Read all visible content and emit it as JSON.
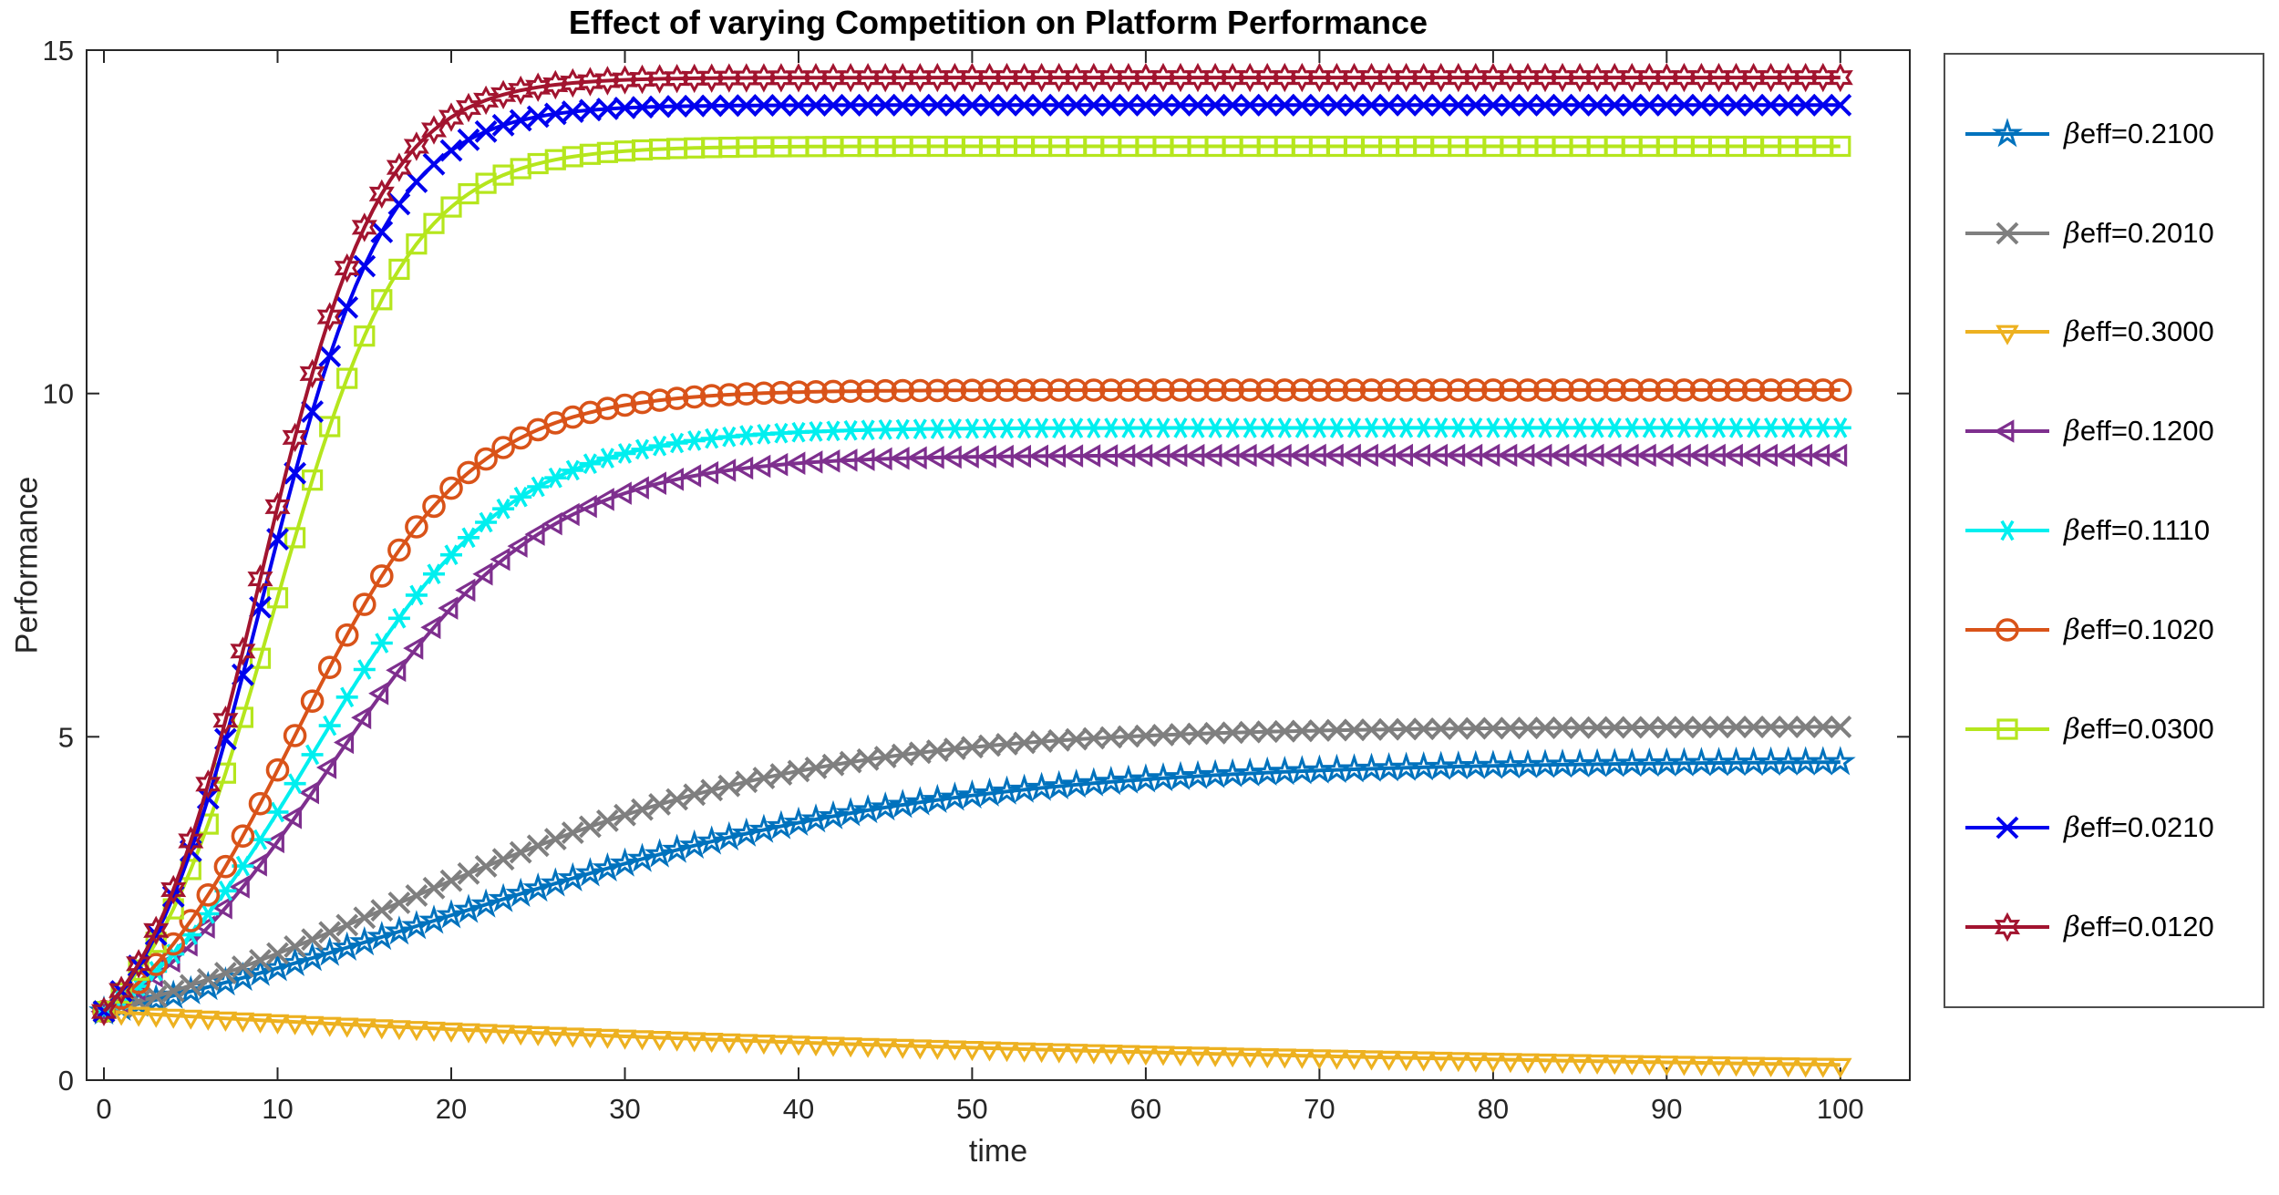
{
  "chart_data": {
    "type": "line",
    "title": "Effect of varying Competition on Platform Performance",
    "xlabel": "time",
    "ylabel": "Performance",
    "xlim": [
      -1,
      104
    ],
    "ylim": [
      0,
      15
    ],
    "xticks": [
      0,
      10,
      20,
      30,
      40,
      50,
      60,
      70,
      80,
      90,
      100
    ],
    "yticks": [
      0,
      5,
      10,
      15
    ],
    "grid": false,
    "legend_position": "outside-right",
    "axis_color": "#262626",
    "x_samples": [
      0,
      5,
      10,
      15,
      20,
      25,
      30,
      35,
      40,
      45,
      50,
      55,
      60,
      65,
      70,
      75,
      80,
      85,
      90,
      95,
      100
    ],
    "series": [
      {
        "label": "βeff=0.2100",
        "color": "#0072BD",
        "marker": "pentagram",
        "model": {
          "type": "logistic",
          "K": 4.65,
          "r": 0.068,
          "p0": 1
        },
        "values": [
          1.0,
          1.29,
          1.63,
          2.01,
          2.4,
          2.79,
          3.15,
          3.48,
          3.75,
          3.97,
          4.14,
          4.28,
          4.38,
          4.46,
          4.51,
          4.55,
          4.58,
          4.6,
          4.61,
          4.63,
          4.64
        ]
      },
      {
        "label": "βeff=0.2010",
        "color": "#7F7F7F",
        "marker": "x",
        "model": {
          "type": "logistic",
          "K": 5.15,
          "r": 0.084,
          "p0": 1
        },
        "values": [
          1.0,
          1.38,
          1.84,
          2.37,
          2.9,
          3.42,
          3.86,
          4.22,
          4.5,
          4.7,
          4.85,
          4.95,
          5.01,
          5.06,
          5.09,
          5.11,
          5.12,
          5.13,
          5.14,
          5.14,
          5.15
        ]
      },
      {
        "label": "βeff=0.3000",
        "color": "#EDB120",
        "marker": "triangle-down",
        "model": {
          "type": "exp_decay",
          "rate": 0.015,
          "p0": 1
        },
        "values": [
          1.0,
          0.93,
          0.86,
          0.8,
          0.74,
          0.69,
          0.64,
          0.59,
          0.55,
          0.51,
          0.47,
          0.44,
          0.41,
          0.38,
          0.35,
          0.33,
          0.3,
          0.28,
          0.26,
          0.24,
          0.22
        ]
      },
      {
        "label": "βeff=0.1200",
        "color": "#7E2F8E",
        "marker": "triangle-left",
        "model": {
          "type": "logistic",
          "K": 9.1,
          "r": 0.161,
          "p0": 1
        },
        "values": [
          1.0,
          1.97,
          3.47,
          5.28,
          6.87,
          7.95,
          8.55,
          8.84,
          8.98,
          9.05,
          9.08,
          9.09,
          9.1,
          9.1,
          9.1,
          9.1,
          9.1,
          9.1,
          9.1,
          9.1,
          9.1
        ]
      },
      {
        "label": "βeff=0.1110",
        "color": "#00EFEF",
        "marker": "asterisk",
        "model": {
          "type": "logistic",
          "K": 9.5,
          "r": 0.178,
          "p0": 1
        },
        "values": [
          1.0,
          2.12,
          3.9,
          5.98,
          7.65,
          8.64,
          9.13,
          9.34,
          9.44,
          9.47,
          9.49,
          9.49,
          9.5,
          9.5,
          9.5,
          9.5,
          9.5,
          9.5,
          9.5,
          9.5,
          9.5
        ]
      },
      {
        "label": "βeff=0.1020",
        "color": "#D95319",
        "marker": "circle",
        "model": {
          "type": "logistic",
          "K": 10.05,
          "r": 0.2,
          "p0": 1
        },
        "values": [
          1.0,
          2.32,
          4.52,
          6.93,
          8.62,
          9.47,
          9.83,
          9.97,
          10.02,
          10.04,
          10.04,
          10.05,
          10.05,
          10.05,
          10.05,
          10.05,
          10.05,
          10.05,
          10.05,
          10.05,
          10.05
        ]
      },
      {
        "label": "βeff=0.0300",
        "color": "#B5E61D",
        "marker": "square",
        "model": {
          "type": "logistic",
          "K": 13.6,
          "r": 0.26,
          "p0": 1
        },
        "values": [
          1.0,
          3.07,
          7.02,
          10.84,
          12.72,
          13.35,
          13.53,
          13.58,
          13.59,
          13.6,
          13.6,
          13.6,
          13.6,
          13.6,
          13.6,
          13.6,
          13.6,
          13.6,
          13.6,
          13.6,
          13.6
        ]
      },
      {
        "label": "βeff=0.0210",
        "color": "#0000EE",
        "marker": "x",
        "model": {
          "type": "logistic",
          "K": 14.2,
          "r": 0.28,
          "p0": 1
        },
        "values": [
          1.0,
          3.34,
          7.88,
          11.85,
          13.54,
          14.03,
          14.16,
          14.19,
          14.2,
          14.2,
          14.2,
          14.2,
          14.2,
          14.2,
          14.2,
          14.2,
          14.2,
          14.2,
          14.2,
          14.2,
          14.2
        ]
      },
      {
        "label": "βeff=0.0120",
        "color": "#A2142F",
        "marker": "hexagram",
        "model": {
          "type": "logistic",
          "K": 14.6,
          "r": 0.29,
          "p0": 1
        },
        "values": [
          1.0,
          3.48,
          8.35,
          12.42,
          14.02,
          14.46,
          14.57,
          14.59,
          14.6,
          14.6,
          14.6,
          14.6,
          14.6,
          14.6,
          14.6,
          14.6,
          14.6,
          14.6,
          14.6,
          14.6,
          14.6
        ]
      }
    ]
  }
}
